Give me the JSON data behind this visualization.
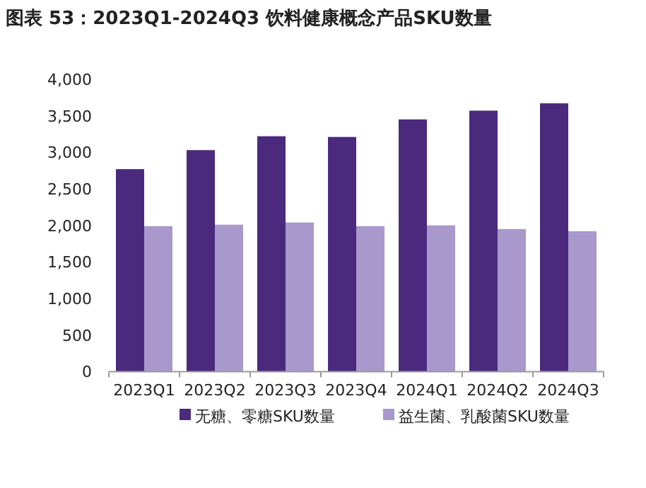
{
  "chart_data": {
    "type": "bar",
    "title": "图表 53：2023Q1-2024Q3 饮料健康概念产品SKU数量",
    "categories": [
      "2023Q1",
      "2023Q2",
      "2023Q3",
      "2023Q4",
      "2024Q1",
      "2024Q2",
      "2024Q3"
    ],
    "series": [
      {
        "name": "无糖、零糖SKU数量",
        "color": "#4b2a7e",
        "values": [
          2770,
          3030,
          3220,
          3210,
          3450,
          3570,
          3670
        ]
      },
      {
        "name": "益生菌、乳酸菌SKU数量",
        "color": "#a898cc",
        "values": [
          1990,
          2010,
          2040,
          1990,
          2000,
          1950,
          1920
        ]
      }
    ],
    "ylim": [
      0,
      4000
    ],
    "yticks": [
      {
        "value": 0,
        "label": "0"
      },
      {
        "value": 500,
        "label": "500"
      },
      {
        "value": 1000,
        "label": "1,000"
      },
      {
        "value": 1500,
        "label": "1,500"
      },
      {
        "value": 2000,
        "label": "2,000"
      },
      {
        "value": 2500,
        "label": "2,500"
      },
      {
        "value": 3000,
        "label": "3,000"
      },
      {
        "value": 3500,
        "label": "3,500"
      },
      {
        "value": 4000,
        "label": "4,000"
      }
    ],
    "grid": false,
    "legend": "bottom"
  }
}
